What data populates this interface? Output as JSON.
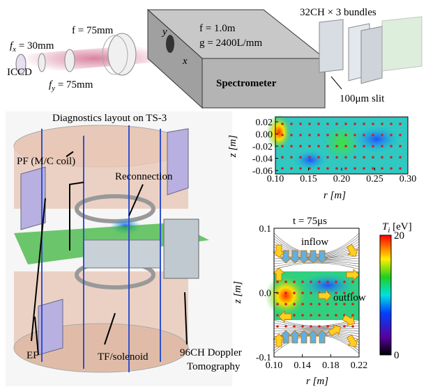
{
  "optics": {
    "fx": {
      "symbol": "f",
      "sub": "x",
      "rest": " = 30mm"
    },
    "f75": "f = 75mm",
    "fy": {
      "symbol": "f",
      "sub": "y",
      "rest": " = 75mm"
    },
    "detector": "ICCD",
    "spectrometer": {
      "label": "Spectrometer",
      "focal": "f = 1.0m",
      "grating": "g = 2400L/mm",
      "axis_y": "y",
      "axis_x": "x"
    },
    "bundles": "32CH × 3 bundles",
    "slit": "100μm slit"
  },
  "device": {
    "title": "Diagnostics layout on TS-3",
    "pf": "PF (M/C coil)",
    "reconnection": "Reconnection",
    "ef": "EF",
    "tf": "TF/solenoid",
    "doppler_1": "96CH Doppler",
    "doppler_2": "Tomography"
  },
  "map_top": {
    "ylabel": "z [m]",
    "xlabel": "r [m]",
    "yticks": [
      "0.02",
      "0.00",
      "-0.02",
      "-0.04",
      "-0.06"
    ],
    "xticks": [
      "0.10",
      "0.15",
      "0.20",
      "0.25",
      "0.30"
    ]
  },
  "map_bottom": {
    "title": "t = 75μs",
    "ylabel": "z [m]",
    "xlabel": "r [m]",
    "yticks": [
      "0.1",
      "0.0",
      "-0.1"
    ],
    "xticks": [
      "0.10",
      "0.14",
      "0.18",
      "0.22"
    ],
    "inflow": "inflow",
    "outflow": "outflow",
    "colorbar": {
      "symbol": "T",
      "sub": "i",
      "rest": " [eV]",
      "ticks": [
        "20",
        "0"
      ]
    }
  }
}
